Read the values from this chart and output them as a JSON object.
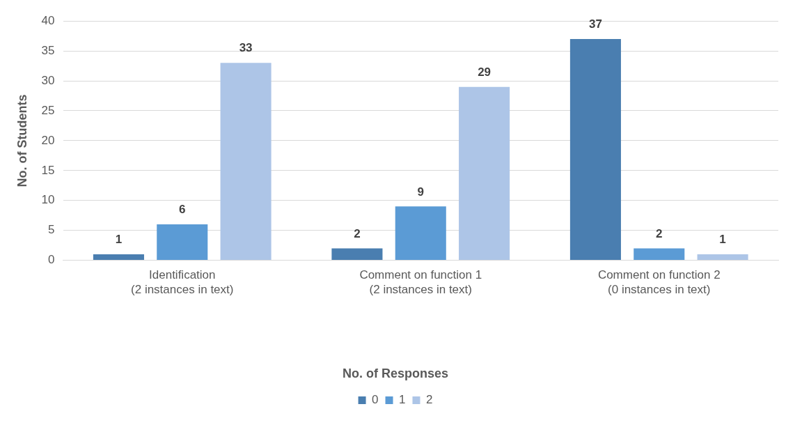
{
  "chart_data": {
    "type": "bar",
    "ylabel": "No. of Students",
    "legend_title": "No. of Responses",
    "categories": [
      "Identification\n(2 instances in text)",
      "Comment on function 1\n(2 instances in text)",
      "Comment on function 2\n(0 instances in text)"
    ],
    "series": [
      {
        "name": "0",
        "color": "#4a7eb0",
        "values": [
          1,
          2,
          37
        ]
      },
      {
        "name": "1",
        "color": "#5b9bd5",
        "values": [
          6,
          9,
          2
        ]
      },
      {
        "name": "2",
        "color": "#adc5e7",
        "values": [
          33,
          29,
          1
        ]
      }
    ],
    "ylim": [
      0,
      40
    ],
    "yticks": [
      0,
      5,
      10,
      15,
      20,
      25,
      30,
      35,
      40
    ],
    "grid": "y",
    "legend": "bottom",
    "data_labels": true
  }
}
